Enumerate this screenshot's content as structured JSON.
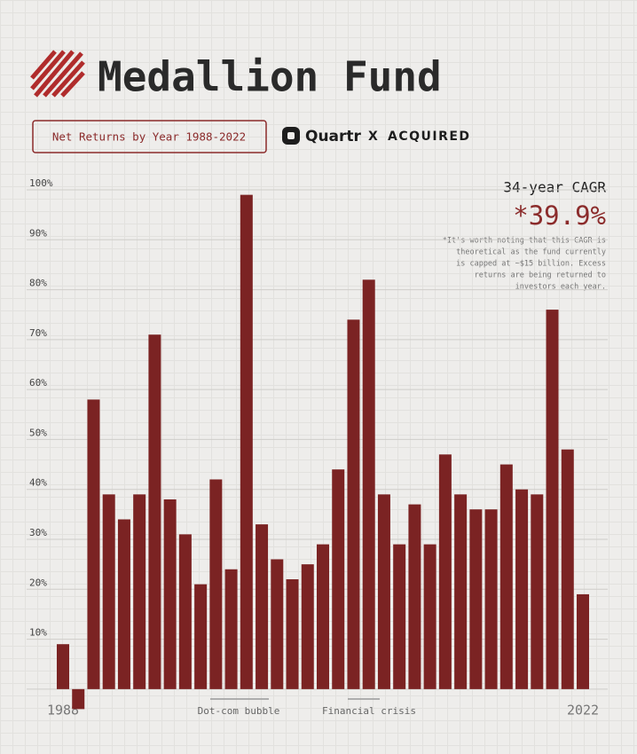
{
  "chart_data": {
    "type": "bar",
    "title": "Medallion Fund",
    "subtitle": "Net Returns by Year 1988-2022",
    "brands": [
      "Quartr",
      "X",
      "ACQUIRED"
    ],
    "cagr_label": "34-year CAGR",
    "cagr": {
      "value": 39.9,
      "label": "*39.9%"
    },
    "note": [
      "*It's worth noting that this CAGR is",
      "theoretical as the fund currently",
      "is capped at ~$15 billion. Excess",
      "returns are being returned to",
      "investors each year."
    ],
    "categories": [
      "1988",
      null,
      null,
      null,
      null,
      null,
      null,
      null,
      null,
      null,
      null,
      null,
      null,
      null,
      null,
      null,
      null,
      null,
      null,
      null,
      null,
      null,
      null,
      null,
      null,
      null,
      null,
      null,
      null,
      null,
      null,
      null,
      null,
      null,
      "2022"
    ],
    "values": [
      9,
      -4,
      58,
      39,
      34,
      39,
      71,
      38,
      31,
      21,
      42,
      24,
      99,
      33,
      26,
      22,
      25,
      29,
      44,
      74,
      82,
      39,
      29,
      37,
      29,
      47,
      39,
      36,
      36,
      45,
      40,
      39,
      76,
      48,
      19
    ],
    "color": "#7b2323",
    "ylim": [
      -5,
      100
    ],
    "yticks": [
      {
        "value": 10,
        "label": "10%"
      },
      {
        "value": 20,
        "label": "20%"
      },
      {
        "value": 30,
        "label": "30%"
      },
      {
        "value": 40,
        "label": "40%"
      },
      {
        "value": 50,
        "label": "50%"
      },
      {
        "value": 60,
        "label": "60%"
      },
      {
        "value": 70,
        "label": "70%"
      },
      {
        "value": 80,
        "label": "80%"
      },
      {
        "value": 90,
        "label": "90%"
      },
      {
        "value": 100,
        "label": "100%"
      }
    ],
    "grid": true,
    "annotations": [
      "Dot-com bubble",
      "Financial crisis"
    ]
  }
}
